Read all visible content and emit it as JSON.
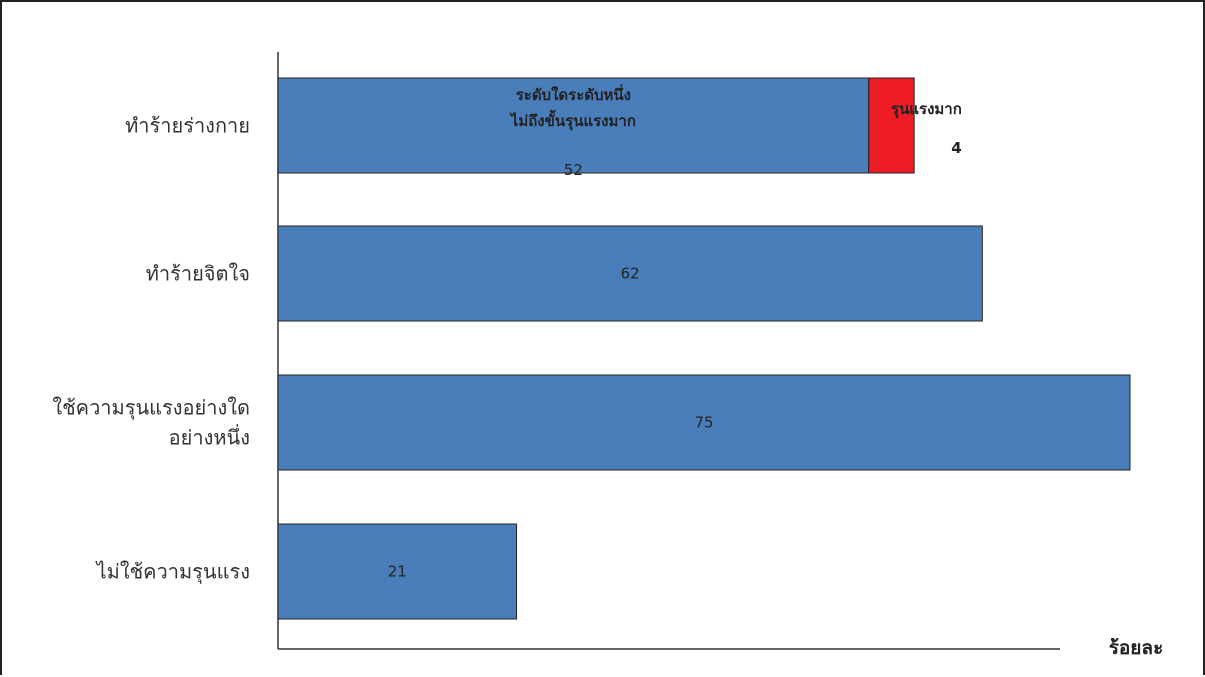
{
  "chart_data": {
    "type": "bar",
    "orientation": "horizontal",
    "stacked": true,
    "unit_label": "ร้อยละ",
    "categories": [
      [
        "ทำร้ายร่างกาย"
      ],
      [
        "ทำร้ายจิตใจ"
      ],
      [
        "ใช้ความรุนแรงอย่างใด",
        "อย่างหนึ่ง"
      ],
      [
        "ไม่ใช้ความรุนแรง"
      ]
    ],
    "bars": [
      {
        "segments": [
          {
            "name_lines": [
              "ระดับใดระดับหนึ่ง",
              "ไม่ถึงขั้นรุนแรงมาก"
            ],
            "value": 52,
            "color": "#4A7EBB"
          },
          {
            "name_lines": [
              "รุนแรงมาก"
            ],
            "value": 4,
            "color": "#EE1C25"
          }
        ]
      },
      {
        "segments": [
          {
            "value": 62,
            "color": "#4A7EBB"
          }
        ]
      },
      {
        "segments": [
          {
            "value": 75,
            "color": "#4A7EBB"
          }
        ]
      },
      {
        "segments": [
          {
            "value": 21,
            "color": "#4A7EBB"
          }
        ]
      }
    ],
    "xlim": [
      0,
      75
    ],
    "grid": false,
    "legend": "none"
  }
}
